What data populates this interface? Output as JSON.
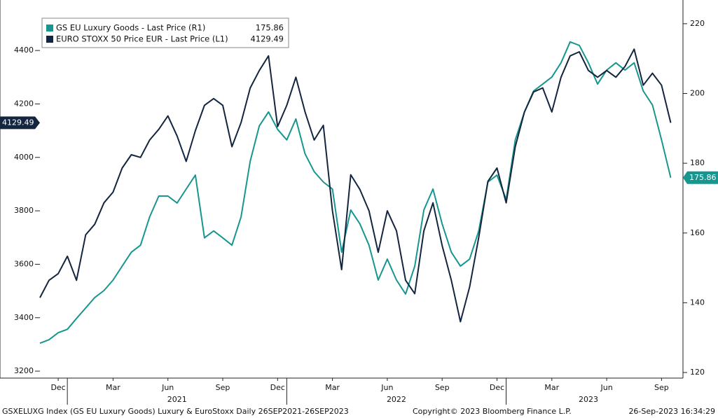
{
  "chart_data": {
    "type": "line",
    "categories": [
      null,
      null,
      "Dec",
      null,
      null,
      null,
      null,
      null,
      "Mar",
      null,
      null,
      null,
      null,
      null,
      "Jun",
      null,
      null,
      null,
      null,
      null,
      "Sep",
      null,
      null,
      null,
      null,
      null,
      "Dec",
      null,
      null,
      null,
      null,
      null,
      "Mar",
      null,
      null,
      null,
      null,
      null,
      "Jun",
      null,
      null,
      null,
      null,
      null,
      "Sep",
      null,
      null,
      null,
      null,
      null,
      "Dec",
      null,
      null,
      null,
      null,
      null,
      "Mar",
      null,
      null,
      null,
      null,
      null,
      "Jun",
      null,
      null,
      null,
      null,
      null,
      "Sep",
      null
    ],
    "year_labels": [
      "2021",
      "2022",
      "2023"
    ],
    "series": [
      {
        "name": "GS EU Luxury Goods - Last Price (R1)",
        "color": "#17968f",
        "axis": "y2",
        "values": [
          128.4,
          129.4,
          131.4,
          132.4,
          135.5,
          138.5,
          141.5,
          143.5,
          146.5,
          150.5,
          154.5,
          156.5,
          164.6,
          170.6,
          170.6,
          168.6,
          172.6,
          176.6,
          158.6,
          160.6,
          158.6,
          156.5,
          164.6,
          180.6,
          190.7,
          194.7,
          189.7,
          186.7,
          192.7,
          182.7,
          177.6,
          174.6,
          172.6,
          154.5,
          166.6,
          162.6,
          156.5,
          146.5,
          152.5,
          146.5,
          142.5,
          150.5,
          166.6,
          172.6,
          162.6,
          154.5,
          150.5,
          152.5,
          160.6,
          174.6,
          176.6,
          169.6,
          186.7,
          194.7,
          200.7,
          202.7,
          204.7,
          208.8,
          214.8,
          213.8,
          208.8,
          202.7,
          206.7,
          208.8,
          206.7,
          208.8,
          200.7,
          196.7,
          186.7,
          175.86
        ]
      },
      {
        "name": "EURO STOXX 50 Price EUR - Last Price (L1)",
        "color": "#13253f",
        "axis": "y",
        "values": [
          3475,
          3540,
          3565,
          3630,
          3540,
          3710,
          3750,
          3830,
          3870,
          3960,
          4010,
          4000,
          4065,
          4105,
          4155,
          4080,
          3985,
          4100,
          4195,
          4220,
          4195,
          4040,
          4130,
          4260,
          4325,
          4380,
          4115,
          4195,
          4300,
          4170,
          4065,
          4120,
          3800,
          3580,
          3935,
          3880,
          3800,
          3645,
          3800,
          3725,
          3540,
          3490,
          3725,
          3830,
          3670,
          3540,
          3385,
          3515,
          3700,
          3910,
          3960,
          3830,
          4040,
          4170,
          4245,
          4260,
          4170,
          4300,
          4380,
          4395,
          4325,
          4300,
          4325,
          4300,
          4340,
          4405,
          4270,
          4315,
          4270,
          4129.49
        ]
      }
    ],
    "ylim": [
      3174,
      4589
    ],
    "yticks": [
      3200,
      3400,
      3600,
      3800,
      4000,
      4200,
      4400
    ],
    "y2lim": [
      118.4,
      226.8
    ],
    "y2ticks": [
      120,
      140,
      160,
      180,
      200,
      220
    ],
    "legend": "upper left",
    "footer": {
      "left": "GSXELUXG Index (GS EU Luxury Goods) Luxury & EuroStoxx  Daily 26SEP2021-26SEP2023",
      "center": "Copyright© 2023 Bloomberg Finance L.P.",
      "right": "26-Sep-2023 16:34:29"
    }
  }
}
